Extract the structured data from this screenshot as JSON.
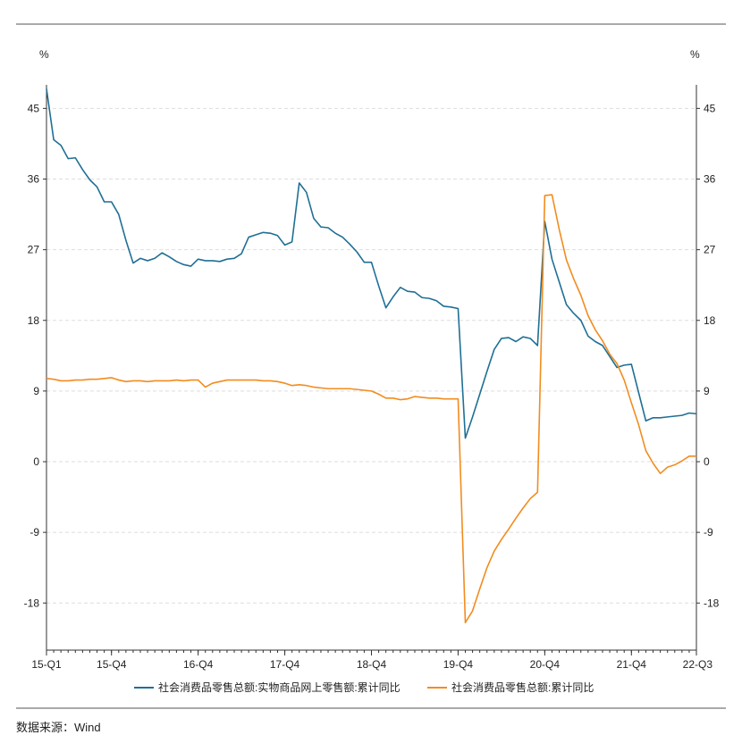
{
  "chart_data": {
    "type": "line",
    "title": "",
    "left_unit": "%",
    "right_unit": "%",
    "ylim": [
      -24,
      48
    ],
    "y_ticks": [
      -18,
      -9,
      0,
      9,
      18,
      27,
      36,
      45
    ],
    "x_ticks": [
      {
        "label": "15-Q1",
        "index": 0
      },
      {
        "label": "15-Q4",
        "index": 9
      },
      {
        "label": "16-Q4",
        "index": 21
      },
      {
        "label": "17-Q4",
        "index": 33
      },
      {
        "label": "18-Q4",
        "index": 45
      },
      {
        "label": "19-Q4",
        "index": 57
      },
      {
        "label": "20-Q4",
        "index": 69
      },
      {
        "label": "21-Q4",
        "index": 81
      },
      {
        "label": "22-Q3",
        "index": 90
      }
    ],
    "grid": true,
    "legend_position": "bottom",
    "series": [
      {
        "name": "社会消费品零售总额:实物商品网上零售额:累计同比",
        "color": "#1f6f95",
        "values": [
          47.5,
          41.0,
          40.3,
          38.6,
          38.7,
          37.2,
          35.9,
          35.0,
          33.1,
          33.1,
          31.5,
          28.2,
          25.3,
          25.9,
          25.6,
          25.9,
          26.6,
          26.1,
          25.5,
          25.1,
          24.9,
          25.8,
          25.6,
          25.6,
          25.5,
          25.8,
          25.9,
          26.5,
          28.6,
          28.9,
          29.2,
          29.1,
          28.8,
          27.6,
          28.0,
          35.5,
          34.3,
          31.0,
          29.9,
          29.8,
          29.1,
          28.6,
          27.7,
          26.7,
          25.4,
          25.4,
          22.4,
          19.6,
          21.0,
          22.2,
          21.7,
          21.6,
          20.9,
          20.8,
          20.5,
          19.8,
          19.7,
          19.5,
          3.0,
          5.7,
          8.6,
          11.5,
          14.3,
          15.7,
          15.8,
          15.3,
          15.9,
          15.7,
          14.8,
          30.6,
          25.8,
          22.9,
          20.0,
          18.9,
          18.0,
          16.0,
          15.3,
          14.8,
          13.4,
          12.0,
          12.3,
          12.4,
          8.8,
          5.2,
          5.6,
          5.6,
          5.7,
          5.8,
          5.9,
          6.2,
          6.1
        ]
      },
      {
        "name": "社会消费品零售总额:累计同比",
        "color": "#f28c1f",
        "values": [
          10.6,
          10.5,
          10.3,
          10.3,
          10.4,
          10.4,
          10.5,
          10.5,
          10.6,
          10.7,
          10.4,
          10.2,
          10.3,
          10.3,
          10.2,
          10.3,
          10.3,
          10.3,
          10.4,
          10.3,
          10.4,
          10.4,
          9.5,
          10.0,
          10.2,
          10.4,
          10.4,
          10.4,
          10.4,
          10.4,
          10.3,
          10.3,
          10.2,
          10.0,
          9.7,
          9.8,
          9.7,
          9.5,
          9.4,
          9.3,
          9.3,
          9.3,
          9.3,
          9.2,
          9.1,
          9.0,
          8.6,
          8.1,
          8.1,
          7.9,
          8.0,
          8.3,
          8.2,
          8.1,
          8.1,
          8.0,
          8.0,
          8.0,
          -20.5,
          -19.0,
          -16.2,
          -13.5,
          -11.4,
          -9.9,
          -8.6,
          -7.2,
          -5.9,
          -4.7,
          -3.9,
          33.9,
          34.0,
          29.6,
          25.7,
          23.3,
          21.2,
          18.6,
          16.8,
          15.4,
          13.7,
          12.5,
          10.4,
          7.5,
          4.7,
          1.4,
          -0.2,
          -1.5,
          -0.7,
          -0.4,
          0.1,
          0.7,
          0.7
        ]
      }
    ]
  },
  "legend": {
    "items": [
      {
        "label": "社会消费品零售总额:实物商品网上零售额:累计同比",
        "color": "#1f6f95"
      },
      {
        "label": "社会消费品零售总额:累计同比",
        "color": "#f28c1f"
      }
    ]
  },
  "source_note": "数据来源：Wind"
}
